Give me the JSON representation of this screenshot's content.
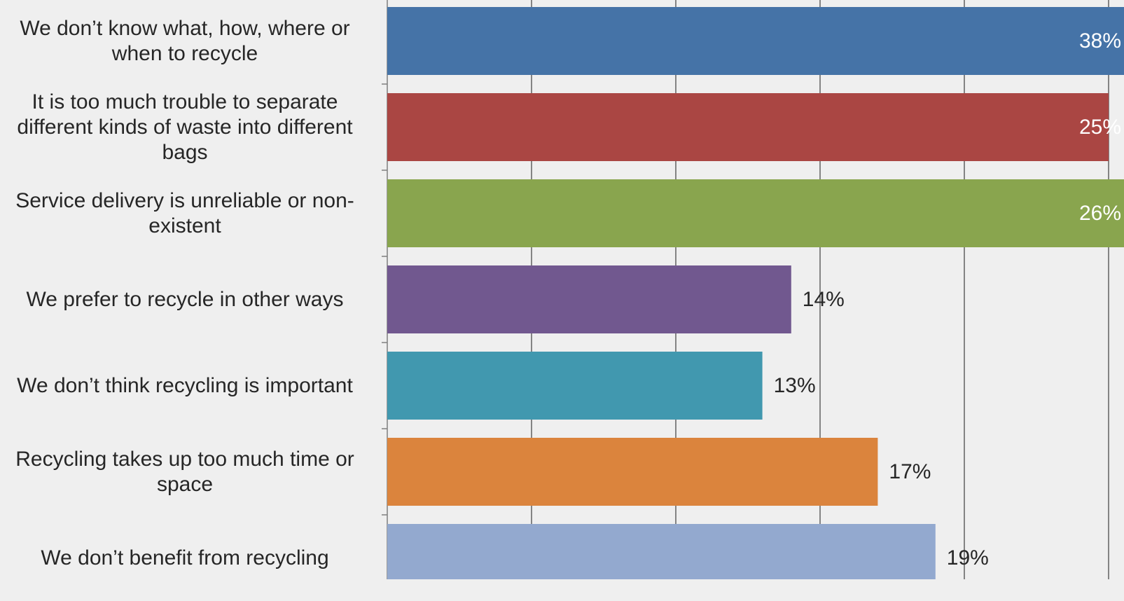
{
  "chart_data": {
    "type": "bar",
    "orientation": "horizontal",
    "categories": [
      "We don’t know what, how, where or when to recycle",
      "It is too much trouble to separate different kinds of waste into different bags",
      "Service delivery is unreliable or non-existent",
      "We prefer to recycle in other ways",
      "We don’t think recycling is important",
      "Recycling takes up too much time or space",
      "We don’t benefit from recycling"
    ],
    "values": [
      38,
      25,
      26,
      14,
      13,
      17,
      19
    ],
    "value_labels": [
      "38%",
      "25%",
      "26%",
      "14%",
      "13%",
      "17%",
      "19%"
    ],
    "colors": [
      "#4573a7",
      "#aa4643",
      "#89a54e",
      "#71588f",
      "#4198af",
      "#db843d",
      "#93a9cf"
    ],
    "xlim": [
      0,
      37
    ],
    "grid": true,
    "gridline_color": "#3c3c3c",
    "axis_color": "#7f7f7f",
    "background": "#efefef",
    "title": "",
    "xlabel": "",
    "ylabel": ""
  }
}
